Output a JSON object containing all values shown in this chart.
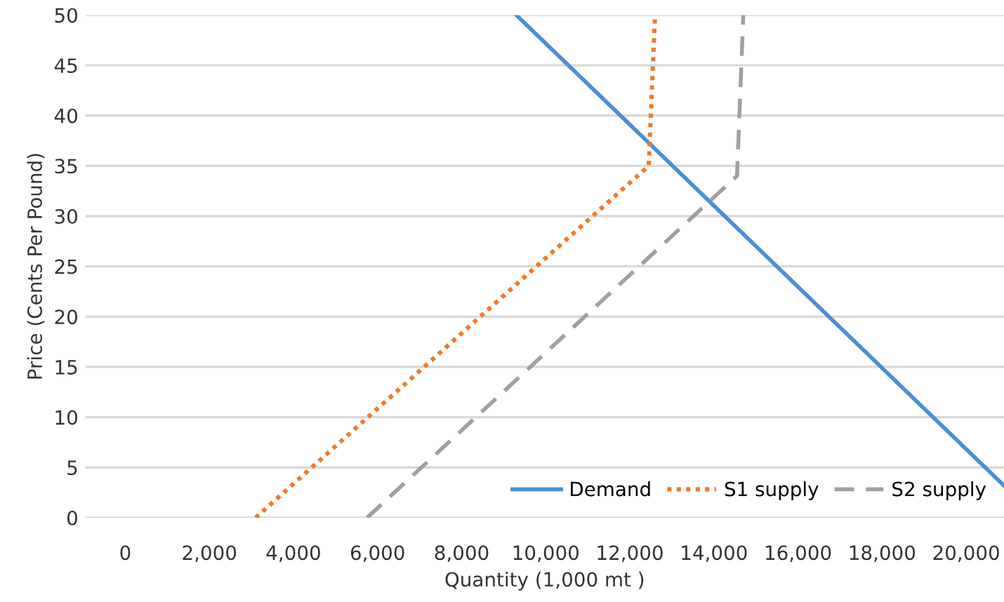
{
  "chart_data": {
    "type": "line",
    "xlabel": "Quantity (1,000 mt )",
    "ylabel": "Price (Cents Per Pound)",
    "xlim": [
      -950,
      20900
    ],
    "ylim": [
      0,
      50
    ],
    "xticks": [
      0,
      {
        "value": 2000,
        "label": "2,000"
      },
      {
        "value": 4000,
        "label": "4,000"
      },
      {
        "value": 6000,
        "label": "6,000"
      },
      {
        "value": 8000,
        "label": "8,000"
      },
      {
        "value": 10000,
        "label": "10,000"
      },
      {
        "value": 12000,
        "label": "12,000"
      },
      {
        "value": 14000,
        "label": "14,000"
      },
      {
        "value": 16000,
        "label": "16,000"
      },
      {
        "value": 18000,
        "label": "18,000"
      },
      {
        "value": 20000,
        "label": "20,000"
      }
    ],
    "yticks": [
      0,
      5,
      10,
      15,
      20,
      25,
      30,
      35,
      40,
      45,
      50
    ],
    "grid": "y",
    "legend": "bottom right",
    "series": [
      {
        "name": "Demand",
        "color": "#4a8fd6",
        "line_style": "solid",
        "x": [
          9300,
          20900
        ],
        "values": [
          50,
          3.2
        ]
      },
      {
        "name": "S1 supply",
        "color": "#f07a2a",
        "line_style": "dotted",
        "x": [
          3100,
          12450,
          12600
        ],
        "values": [
          0,
          35,
          50
        ]
      },
      {
        "name": "S2 supply",
        "color": "#a0a0a0",
        "line_style": "dashed",
        "x": [
          5750,
          14550,
          14700
        ],
        "values": [
          0,
          34,
          50
        ]
      }
    ]
  }
}
